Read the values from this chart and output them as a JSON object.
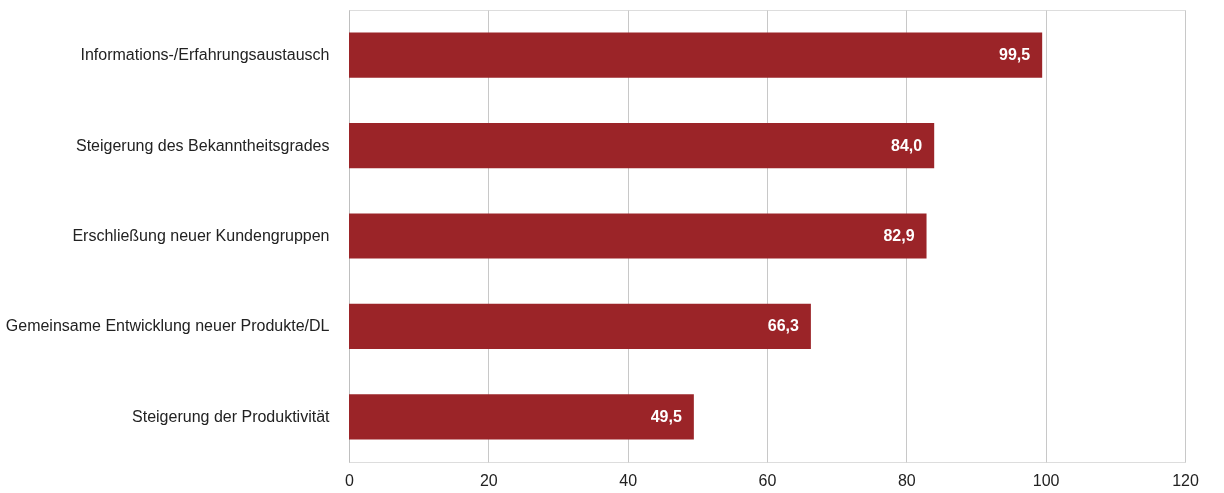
{
  "chart_data": {
    "type": "bar",
    "orientation": "horizontal",
    "categories": [
      "Informations-/Erfahrungsaustausch",
      "Steigerung des Bekanntheitsgrades",
      "Erschließung neuer Kundengruppen",
      "Gemeinsame Entwicklung neuer Produkte/DL",
      "Steigerung der Produktivität"
    ],
    "values": [
      99.5,
      84.0,
      82.9,
      66.3,
      49.5
    ],
    "value_labels": [
      "99,5",
      "84,0",
      "82,9",
      "66,3",
      "49,5"
    ],
    "color": "#9b2428",
    "xlim": [
      0,
      120
    ],
    "xticks": [
      0,
      20,
      40,
      60,
      80,
      100,
      120
    ],
    "grid": "x"
  }
}
